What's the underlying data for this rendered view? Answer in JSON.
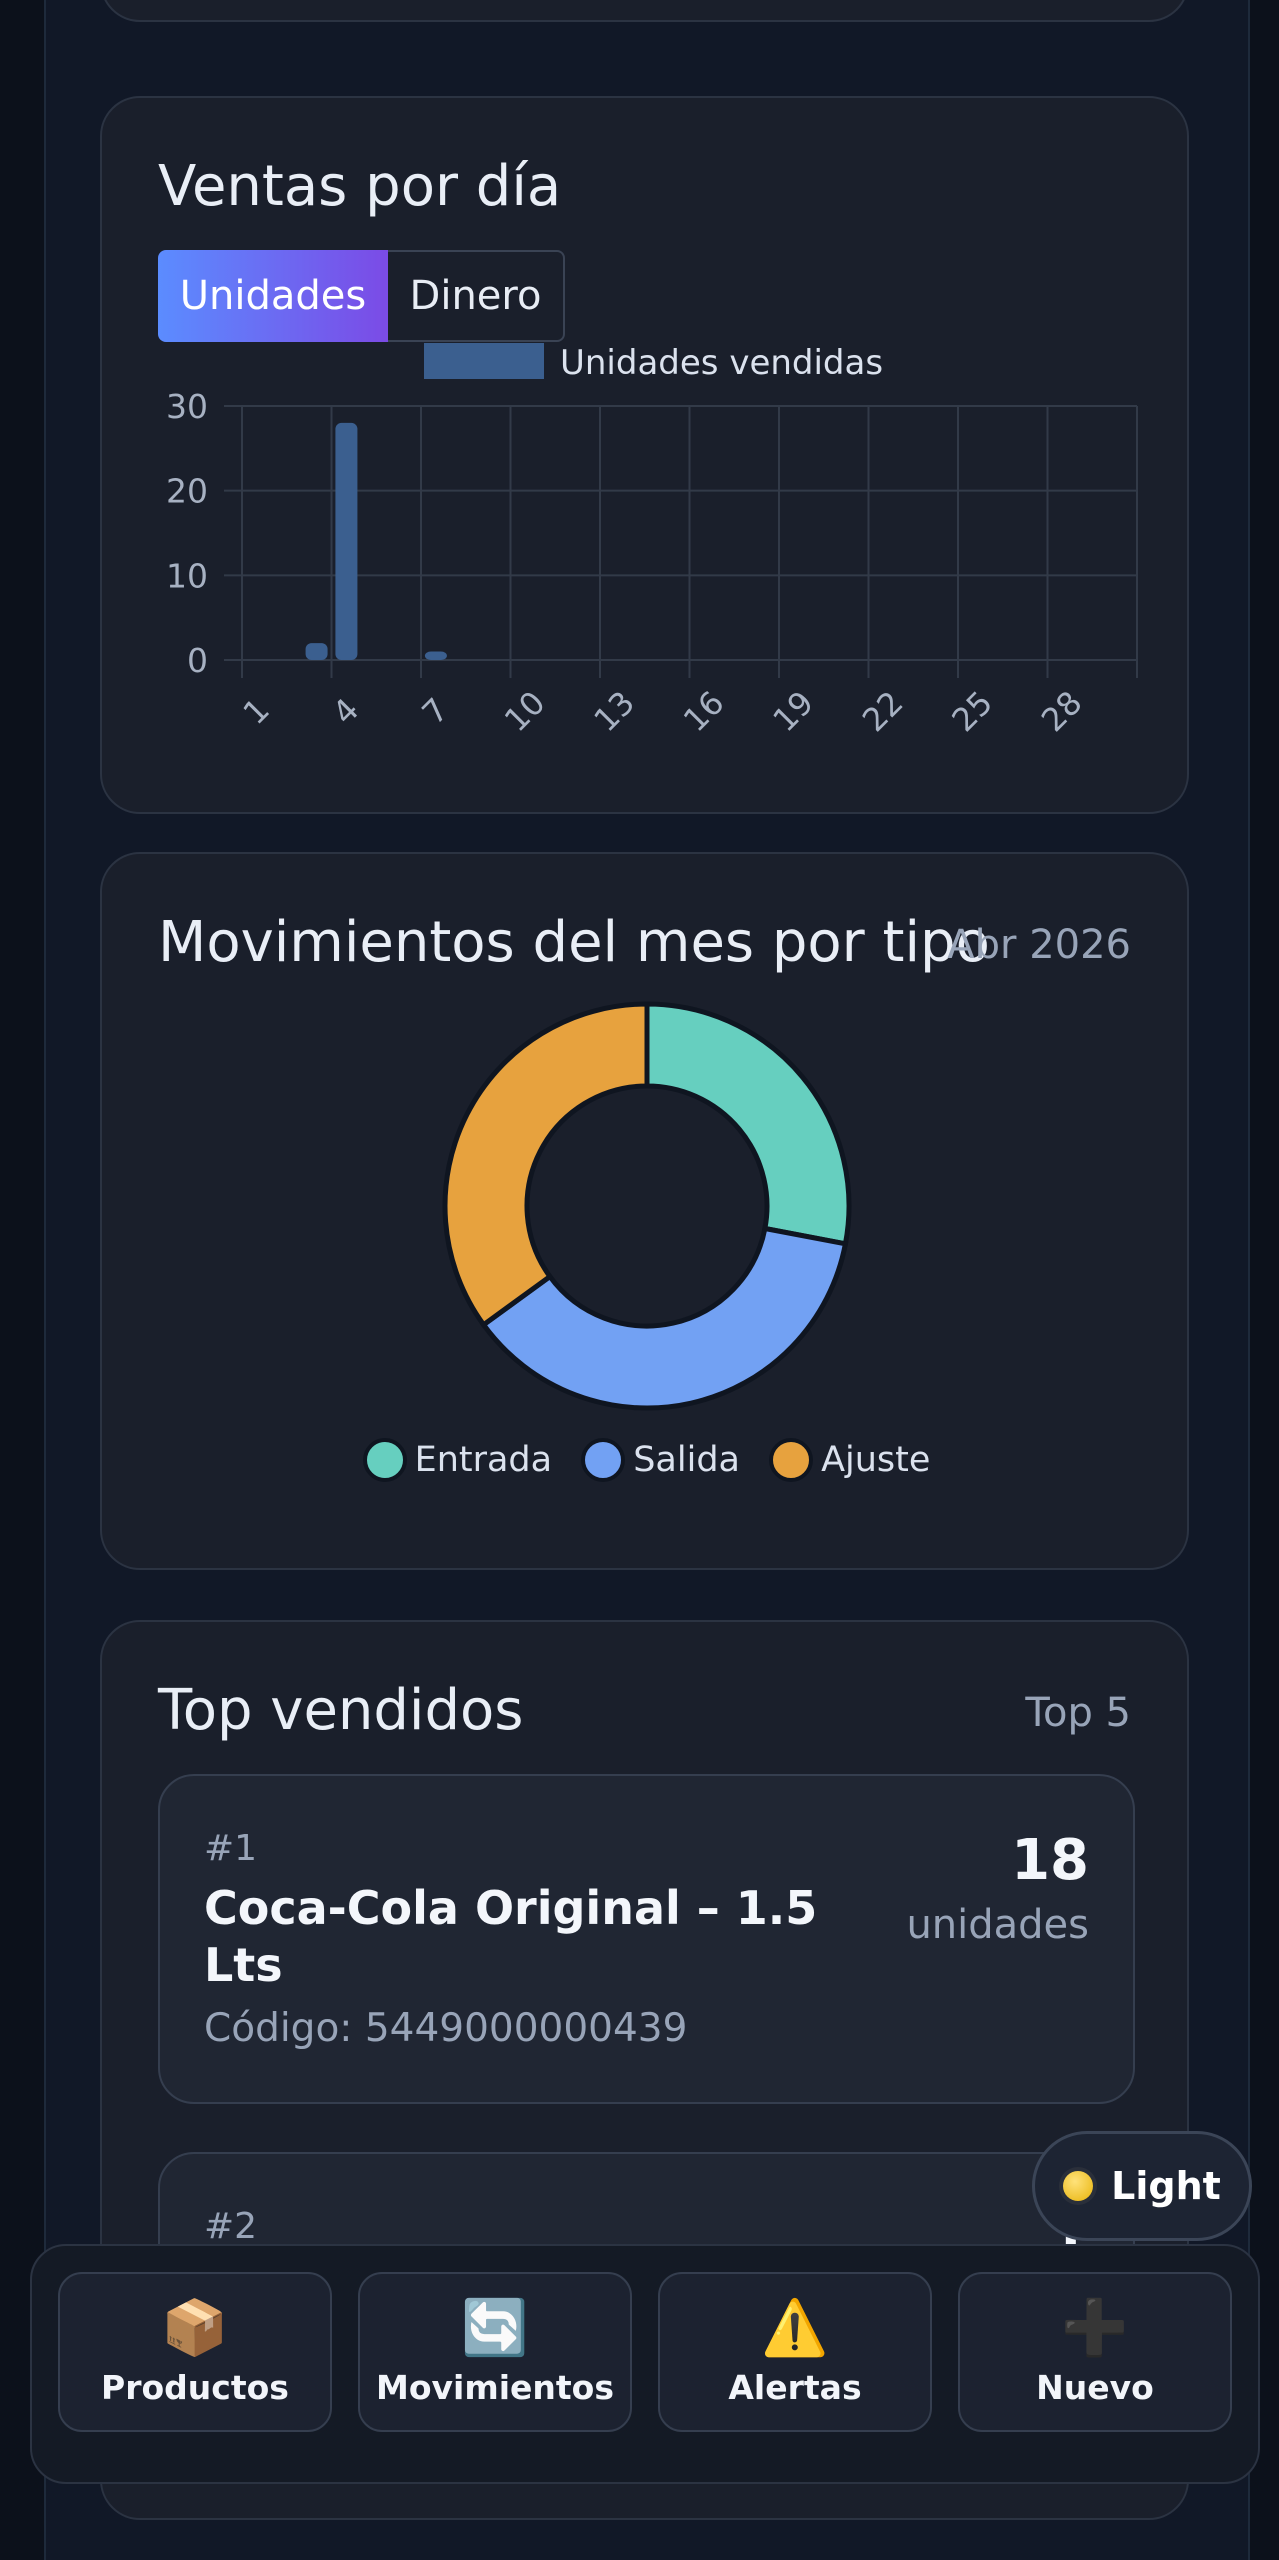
{
  "colors": {
    "bar": "#3b5f8f",
    "entrada": "#66cfbf",
    "salida": "#72a1f3",
    "ajuste": "#e7a23e"
  },
  "sales_card": {
    "title": "Ventas por día",
    "toggle": {
      "units_label": "Unidades",
      "money_label": "Dinero",
      "selected": "Unidades"
    }
  },
  "movements_card": {
    "title": "Movimientos del mes por tipo",
    "period": "Abr 2026"
  },
  "top_card": {
    "title": "Top vendidos",
    "badge": "Top 5",
    "items": [
      {
        "rank": "#1",
        "name": "Coca-Cola Original – 1.5 Lts",
        "code": "Código: 5449000000439",
        "qty": "18",
        "unit": "unidades"
      },
      {
        "rank": "#2",
        "qty": "1"
      }
    ]
  },
  "theme_toggle": {
    "label": "Light"
  },
  "bottom_nav": [
    {
      "label": "Productos",
      "icon": "package-icon",
      "glyph": "📦"
    },
    {
      "label": "Movimientos",
      "icon": "refresh-icon",
      "glyph": "🔄"
    },
    {
      "label": "Alertas",
      "icon": "warning-icon",
      "glyph": "⚠️"
    },
    {
      "label": "Nuevo",
      "icon": "plus-icon",
      "glyph": "➕"
    }
  ],
  "chart_data": [
    {
      "type": "bar",
      "legend": [
        "Unidades vendidas"
      ],
      "legend_position": "top",
      "x": [
        1,
        2,
        3,
        4,
        5,
        6,
        7,
        8,
        9,
        10,
        11,
        12,
        13,
        14,
        15,
        16,
        17,
        18,
        19,
        20,
        21,
        22,
        23,
        24,
        25,
        26,
        27,
        28,
        29,
        30
      ],
      "x_tick_labels": [
        "1",
        "4",
        "7",
        "10",
        "13",
        "16",
        "19",
        "22",
        "25",
        "28"
      ],
      "series": [
        {
          "name": "Unidades vendidas",
          "values": [
            0,
            0,
            2,
            28,
            0,
            0,
            1,
            0,
            0,
            0,
            0,
            0,
            0,
            0,
            0,
            0,
            0,
            0,
            0,
            0,
            0,
            0,
            0,
            0,
            0,
            0,
            0,
            0,
            0,
            0
          ]
        }
      ],
      "y_ticks": [
        "0",
        "10",
        "20",
        "30"
      ],
      "ylim": [
        0,
        30
      ],
      "grid": true
    },
    {
      "type": "pie",
      "donut": true,
      "labels": [
        "Entrada",
        "Salida",
        "Ajuste"
      ],
      "values": [
        28,
        37,
        35
      ],
      "legend_position": "bottom"
    }
  ]
}
